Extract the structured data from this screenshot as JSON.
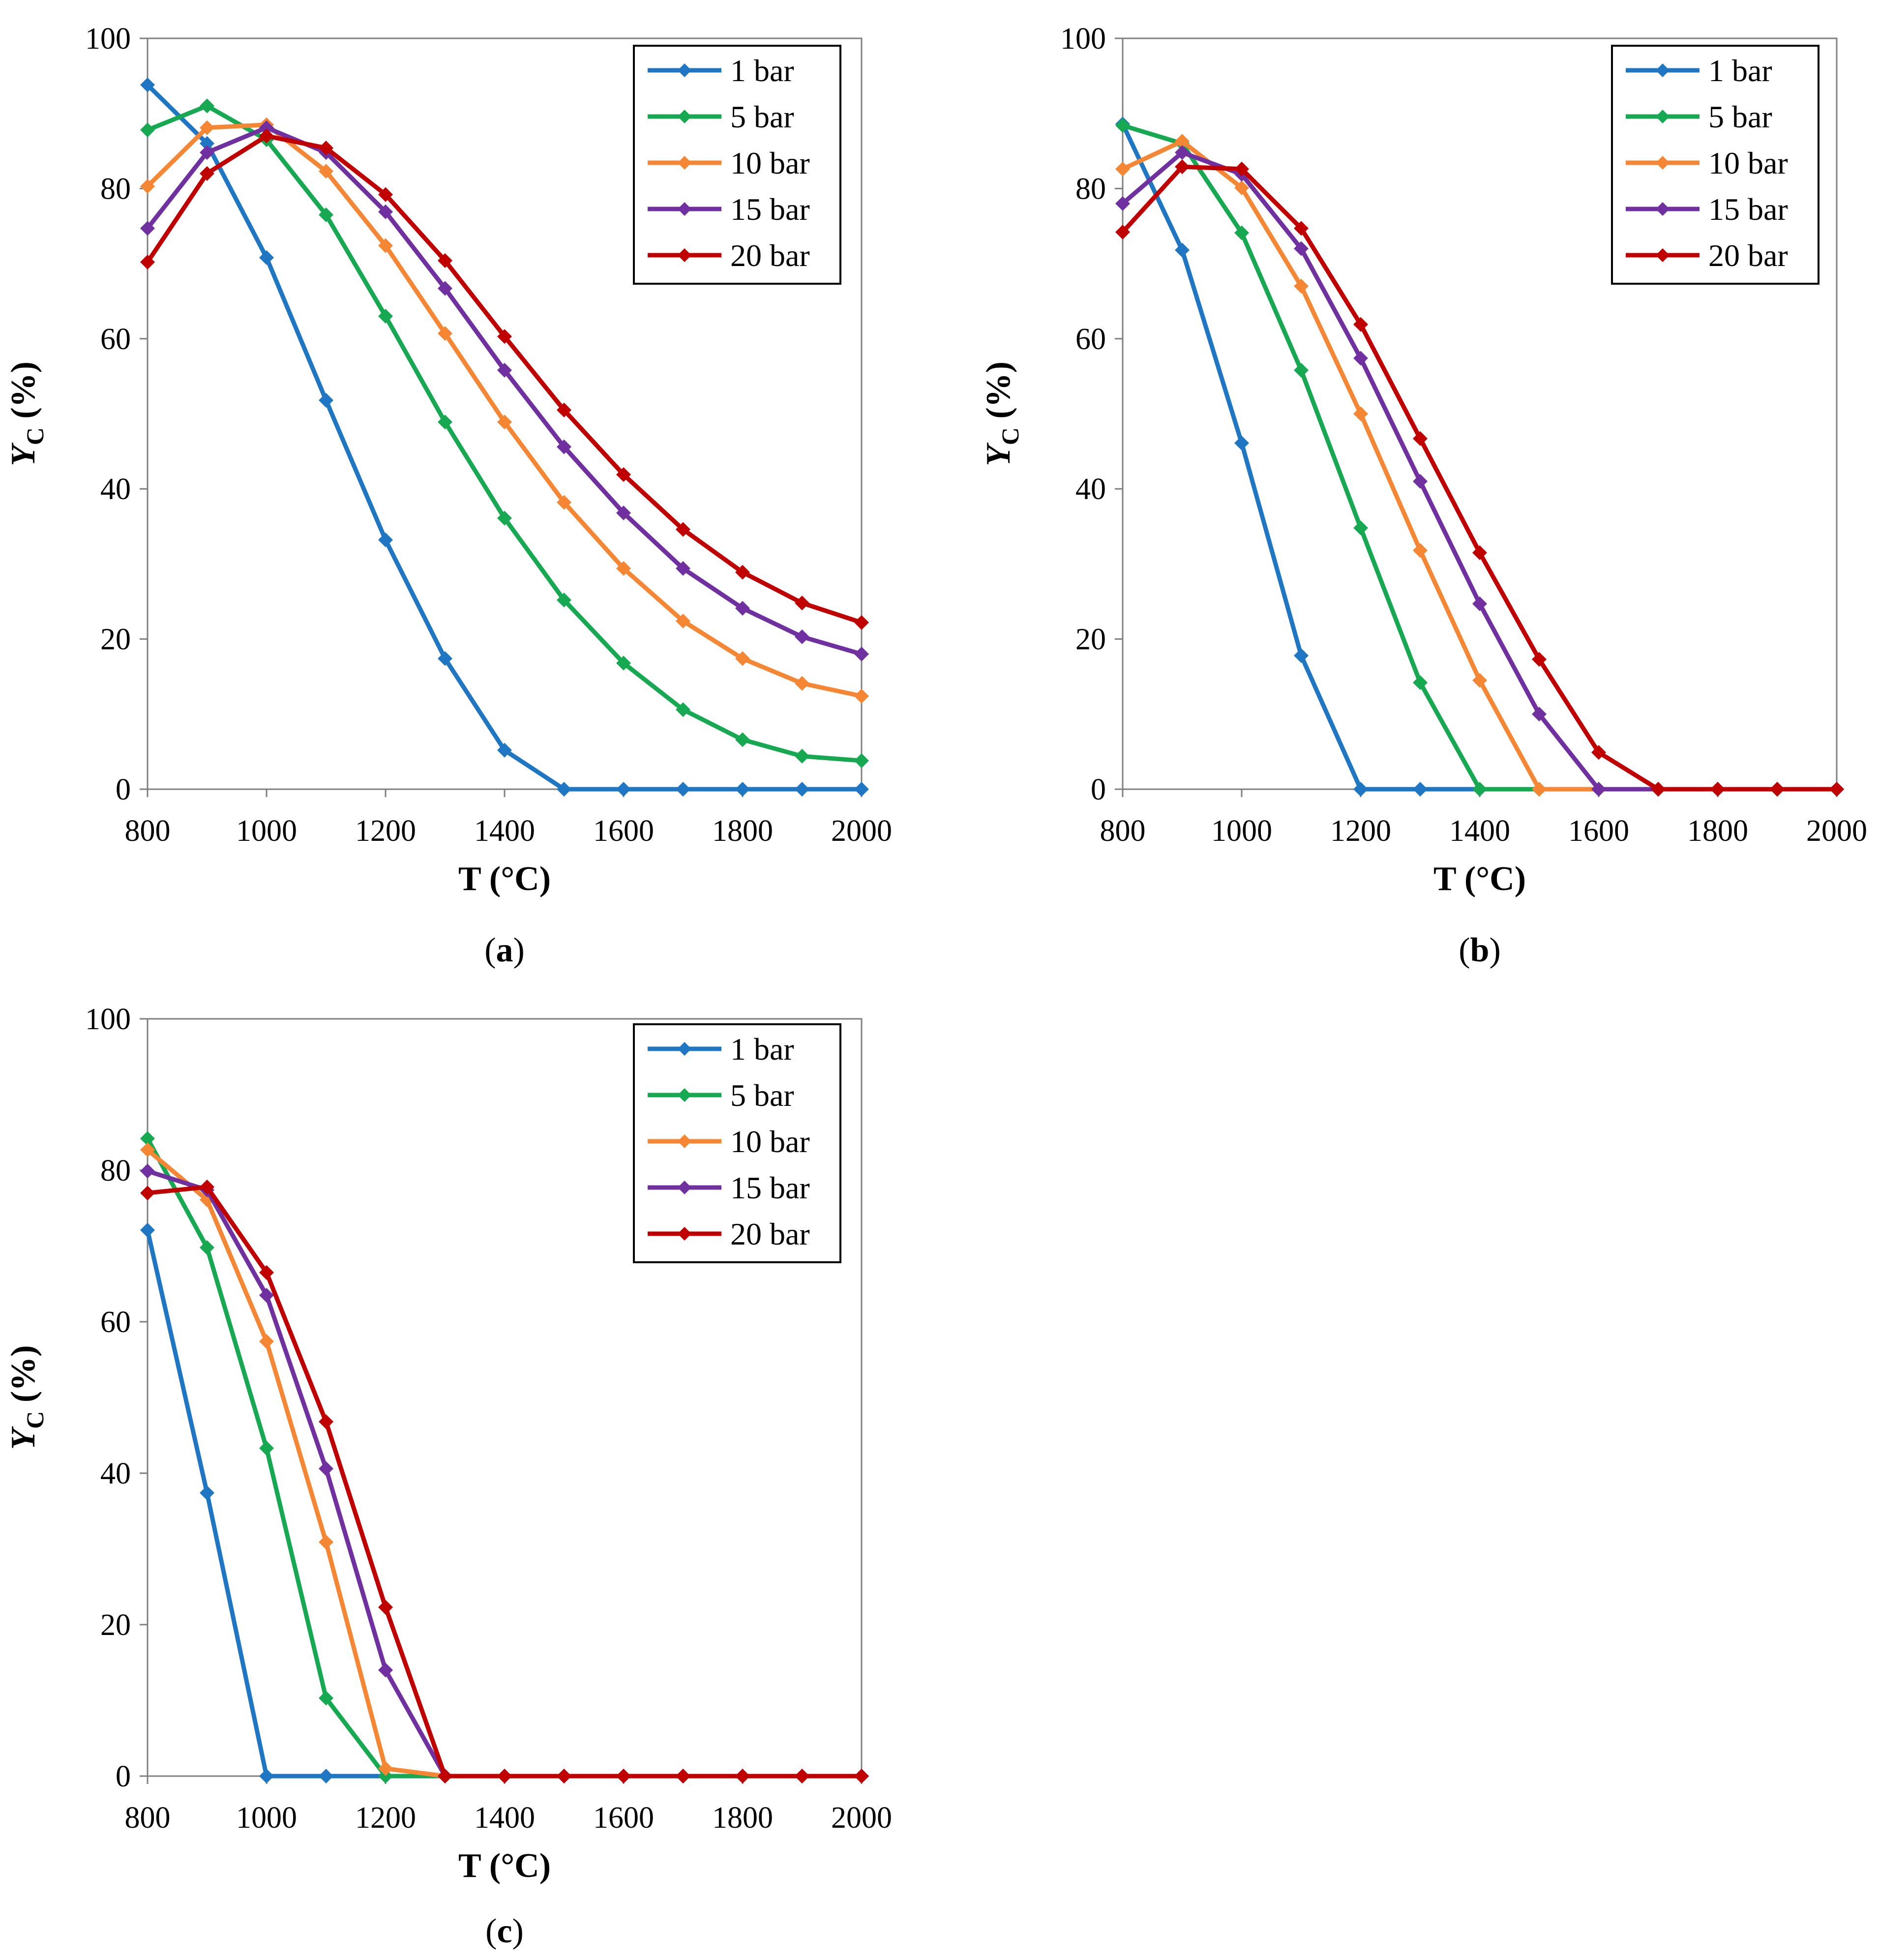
{
  "figure": {
    "panel_count": 3
  },
  "chart_data": [
    {
      "type": "line",
      "panel_label": "a",
      "caption_open": "(",
      "caption_close": ")",
      "xlabel": "T (°C)",
      "ylabel_main": "Y",
      "ylabel_sub": "C",
      "ylabel_unit": " (%)",
      "xlim": [
        800,
        2000
      ],
      "ylim": [
        0,
        100
      ],
      "xticks": [
        800,
        1000,
        1200,
        1400,
        1600,
        1800,
        2000
      ],
      "yticks": [
        0,
        20,
        40,
        60,
        80,
        100
      ],
      "grid": false,
      "legend_position": "top-right",
      "x": [
        800,
        900,
        1000,
        1100,
        1200,
        1300,
        1400,
        1500,
        1600,
        1700,
        1800,
        1900,
        2000
      ],
      "series": [
        {
          "name": "1 bar",
          "color": "#1f77c4",
          "values": [
            93.8,
            86.0,
            70.8,
            51.8,
            33.2,
            17.4,
            5.2,
            0,
            0,
            0,
            0,
            0,
            0
          ]
        },
        {
          "name": "5 bar",
          "color": "#17a852",
          "values": [
            87.8,
            91.0,
            86.5,
            76.5,
            63.0,
            48.9,
            36.1,
            25.2,
            16.8,
            10.6,
            6.6,
            4.4,
            3.8
          ]
        },
        {
          "name": "10 bar",
          "color": "#f58634",
          "values": [
            80.3,
            88.1,
            88.5,
            82.3,
            72.4,
            60.7,
            48.9,
            38.2,
            29.4,
            22.4,
            17.4,
            14.1,
            12.4
          ]
        },
        {
          "name": "15 bar",
          "color": "#7030a0",
          "values": [
            74.7,
            84.8,
            88.1,
            84.8,
            76.9,
            66.7,
            55.8,
            45.6,
            36.8,
            29.4,
            24.1,
            20.3,
            18.0
          ]
        },
        {
          "name": "20 bar",
          "color": "#c00000",
          "values": [
            70.2,
            82.0,
            87.0,
            85.4,
            79.2,
            70.4,
            60.3,
            50.5,
            41.9,
            34.6,
            28.9,
            24.8,
            22.2
          ]
        }
      ]
    },
    {
      "type": "line",
      "panel_label": "b",
      "caption_open": "(",
      "caption_close": ")",
      "xlabel": "T (°C)",
      "ylabel_main": "Y",
      "ylabel_sub": "C",
      "ylabel_unit": " (%)",
      "xlim": [
        800,
        2000
      ],
      "ylim": [
        0,
        100
      ],
      "xticks": [
        800,
        1000,
        1200,
        1400,
        1600,
        1800,
        2000
      ],
      "yticks": [
        0,
        20,
        40,
        60,
        80,
        100
      ],
      "grid": false,
      "legend_position": "top-right",
      "x": [
        800,
        900,
        1000,
        1100,
        1200,
        1300,
        1400,
        1500,
        1600,
        1700,
        1800,
        1900,
        2000
      ],
      "series": [
        {
          "name": "1 bar",
          "color": "#1f77c4",
          "values": [
            88.6,
            71.8,
            46.1,
            17.8,
            0,
            0,
            0,
            0,
            0,
            0,
            0,
            0,
            0
          ]
        },
        {
          "name": "5 bar",
          "color": "#17a852",
          "values": [
            88.4,
            86.0,
            74.1,
            55.8,
            34.8,
            14.2,
            0,
            0,
            0,
            0,
            0,
            0,
            0
          ]
        },
        {
          "name": "10 bar",
          "color": "#f58634",
          "values": [
            82.6,
            86.3,
            80.1,
            67.0,
            50.0,
            31.8,
            14.5,
            0,
            0,
            0,
            0,
            0,
            0
          ]
        },
        {
          "name": "15 bar",
          "color": "#7030a0",
          "values": [
            78.0,
            84.8,
            81.9,
            72.0,
            57.4,
            41.0,
            24.7,
            10.0,
            0,
            0,
            0,
            0,
            0
          ]
        },
        {
          "name": "20 bar",
          "color": "#c00000",
          "values": [
            74.2,
            82.9,
            82.6,
            74.7,
            61.9,
            46.7,
            31.5,
            17.3,
            4.9,
            0,
            0,
            0,
            0
          ]
        }
      ]
    },
    {
      "type": "line",
      "panel_label": "c",
      "caption_open": "(",
      "caption_close": ")",
      "xlabel": "T (°C)",
      "ylabel_main": "Y",
      "ylabel_sub": "C",
      "ylabel_unit": " (%)",
      "xlim": [
        800,
        2000
      ],
      "ylim": [
        0,
        100
      ],
      "xticks": [
        800,
        1000,
        1200,
        1400,
        1600,
        1800,
        2000
      ],
      "yticks": [
        0,
        20,
        40,
        60,
        80,
        100
      ],
      "grid": false,
      "legend_position": "top-right",
      "x": [
        800,
        900,
        1000,
        1100,
        1200,
        1300,
        1400,
        1500,
        1600,
        1700,
        1800,
        1900,
        2000
      ],
      "series": [
        {
          "name": "1 bar",
          "color": "#1f77c4",
          "values": [
            72.1,
            37.4,
            0,
            0,
            0,
            0,
            0,
            0,
            0,
            0,
            0,
            0,
            0
          ]
        },
        {
          "name": "5 bar",
          "color": "#17a852",
          "values": [
            84.2,
            69.8,
            43.3,
            10.3,
            0,
            0,
            0,
            0,
            0,
            0,
            0,
            0,
            0
          ]
        },
        {
          "name": "10 bar",
          "color": "#f58634",
          "values": [
            82.7,
            76.1,
            57.4,
            30.9,
            1.0,
            0,
            0,
            0,
            0,
            0,
            0,
            0,
            0
          ]
        },
        {
          "name": "15 bar",
          "color": "#7030a0",
          "values": [
            79.9,
            77.4,
            63.5,
            40.6,
            14.0,
            0,
            0,
            0,
            0,
            0,
            0,
            0,
            0
          ]
        },
        {
          "name": "20 bar",
          "color": "#c00000",
          "values": [
            77.0,
            77.8,
            66.5,
            46.8,
            22.3,
            0,
            0,
            0,
            0,
            0,
            0,
            0,
            0
          ]
        }
      ]
    }
  ]
}
